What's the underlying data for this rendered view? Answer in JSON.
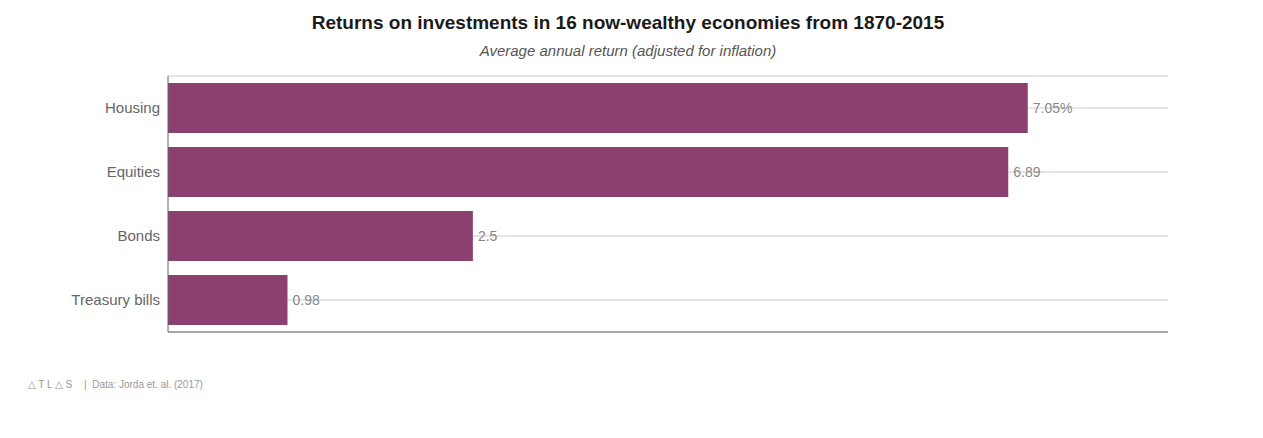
{
  "chart_data": {
    "type": "bar",
    "orientation": "horizontal",
    "title": "Returns on investments in 16 now-wealthy economies from 1870-2015",
    "subtitle": "Average annual return (adjusted for inflation)",
    "categories": [
      "Housing",
      "Equities",
      "Bonds",
      "Treasury bills"
    ],
    "values": [
      7.05,
      6.89,
      2.5,
      0.98
    ],
    "value_labels": [
      "7.05%",
      "6.89",
      "2.5",
      "0.98"
    ],
    "data_labels": true,
    "color": "#8B4070",
    "xlim": [
      0,
      8.2
    ],
    "tick_labels": "y",
    "grid": true,
    "annotations": [
      "△ T L △ S",
      "|  Data: Jorda et. al. (2017)"
    ]
  }
}
